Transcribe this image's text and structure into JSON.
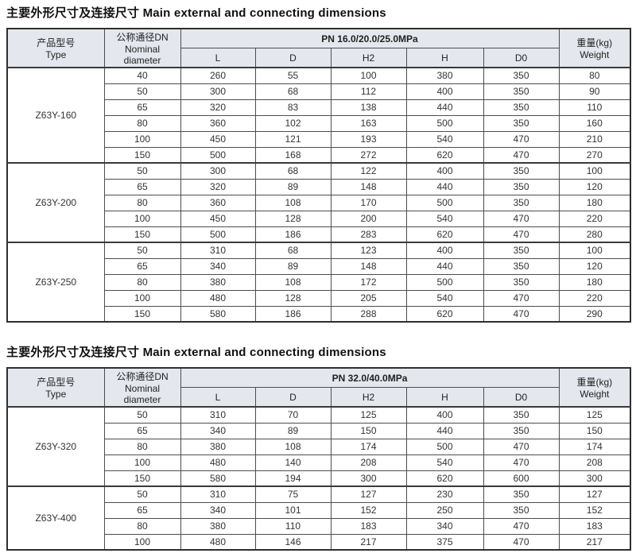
{
  "colors": {
    "header_bg": "#e4e8ee",
    "outer_border": "#2f2f2f",
    "inner_border": "#4d4d4d",
    "title_text": "#101010",
    "cell_text": "#333333"
  },
  "tables": [
    {
      "title": "主要外形尺寸及连接尺寸 Main external and connecting dimensions",
      "headers": {
        "type_zh": "产品型号",
        "type_en": "Type",
        "dn_zh": "公称通径DN",
        "dn_en": "Nominal diameter",
        "pn": "PN 16.0/20.0/25.0MPa",
        "dims": [
          "L",
          "D",
          "H2",
          "H",
          "D0"
        ],
        "weight_zh": "重量(kg)",
        "weight_en": "Weight"
      },
      "groups": [
        {
          "model": "Z63Y-160",
          "rows": [
            {
              "dn": "40",
              "values": [
                "260",
                "55",
                "100",
                "380",
                "350",
                "80"
              ]
            },
            {
              "dn": "50",
              "values": [
                "300",
                "68",
                "112",
                "400",
                "350",
                "90"
              ]
            },
            {
              "dn": "65",
              "values": [
                "320",
                "83",
                "138",
                "440",
                "350",
                "110"
              ]
            },
            {
              "dn": "80",
              "values": [
                "360",
                "102",
                "163",
                "500",
                "350",
                "160"
              ]
            },
            {
              "dn": "100",
              "values": [
                "450",
                "121",
                "193",
                "540",
                "470",
                "210"
              ]
            },
            {
              "dn": "150",
              "values": [
                "500",
                "168",
                "272",
                "620",
                "470",
                "270"
              ]
            }
          ]
        },
        {
          "model": "Z63Y-200",
          "rows": [
            {
              "dn": "50",
              "values": [
                "300",
                "68",
                "122",
                "400",
                "350",
                "100"
              ]
            },
            {
              "dn": "65",
              "values": [
                "320",
                "89",
                "148",
                "440",
                "350",
                "120"
              ]
            },
            {
              "dn": "80",
              "values": [
                "360",
                "108",
                "170",
                "500",
                "350",
                "180"
              ]
            },
            {
              "dn": "100",
              "values": [
                "450",
                "128",
                "200",
                "540",
                "470",
                "220"
              ]
            },
            {
              "dn": "150",
              "values": [
                "500",
                "186",
                "283",
                "620",
                "470",
                "280"
              ]
            }
          ]
        },
        {
          "model": "Z63Y-250",
          "rows": [
            {
              "dn": "50",
              "values": [
                "310",
                "68",
                "123",
                "400",
                "350",
                "100"
              ]
            },
            {
              "dn": "65",
              "values": [
                "340",
                "89",
                "148",
                "440",
                "350",
                "120"
              ]
            },
            {
              "dn": "80",
              "values": [
                "380",
                "108",
                "172",
                "500",
                "350",
                "180"
              ]
            },
            {
              "dn": "100",
              "values": [
                "480",
                "128",
                "205",
                "540",
                "470",
                "220"
              ]
            },
            {
              "dn": "150",
              "values": [
                "580",
                "186",
                "288",
                "620",
                "470",
                "290"
              ]
            }
          ]
        }
      ]
    },
    {
      "title": "主要外形尺寸及连接尺寸 Main external and connecting dimensions",
      "headers": {
        "type_zh": "产品型号",
        "type_en": "Type",
        "dn_zh": "公称通径DN",
        "dn_en": "Nominal diameter",
        "pn": "PN 32.0/40.0MPa",
        "dims": [
          "L",
          "D",
          "H2",
          "H",
          "D0"
        ],
        "weight_zh": "重量(kg)",
        "weight_en": "Weight"
      },
      "groups": [
        {
          "model": "Z63Y-320",
          "rows": [
            {
              "dn": "50",
              "values": [
                "310",
                "70",
                "125",
                "400",
                "350",
                "125"
              ]
            },
            {
              "dn": "65",
              "values": [
                "340",
                "89",
                "150",
                "440",
                "350",
                "150"
              ]
            },
            {
              "dn": "80",
              "values": [
                "380",
                "108",
                "174",
                "500",
                "470",
                "174"
              ]
            },
            {
              "dn": "100",
              "values": [
                "480",
                "140",
                "208",
                "540",
                "470",
                "208"
              ]
            },
            {
              "dn": "150",
              "values": [
                "580",
                "194",
                "300",
                "620",
                "600",
                "300"
              ]
            }
          ]
        },
        {
          "model": "Z63Y-400",
          "rows": [
            {
              "dn": "50",
              "values": [
                "310",
                "75",
                "127",
                "230",
                "350",
                "127"
              ]
            },
            {
              "dn": "65",
              "values": [
                "340",
                "101",
                "152",
                "250",
                "350",
                "152"
              ]
            },
            {
              "dn": "80",
              "values": [
                "380",
                "110",
                "183",
                "340",
                "470",
                "183"
              ]
            },
            {
              "dn": "100",
              "values": [
                "480",
                "146",
                "217",
                "375",
                "470",
                "217"
              ]
            }
          ]
        }
      ]
    }
  ]
}
